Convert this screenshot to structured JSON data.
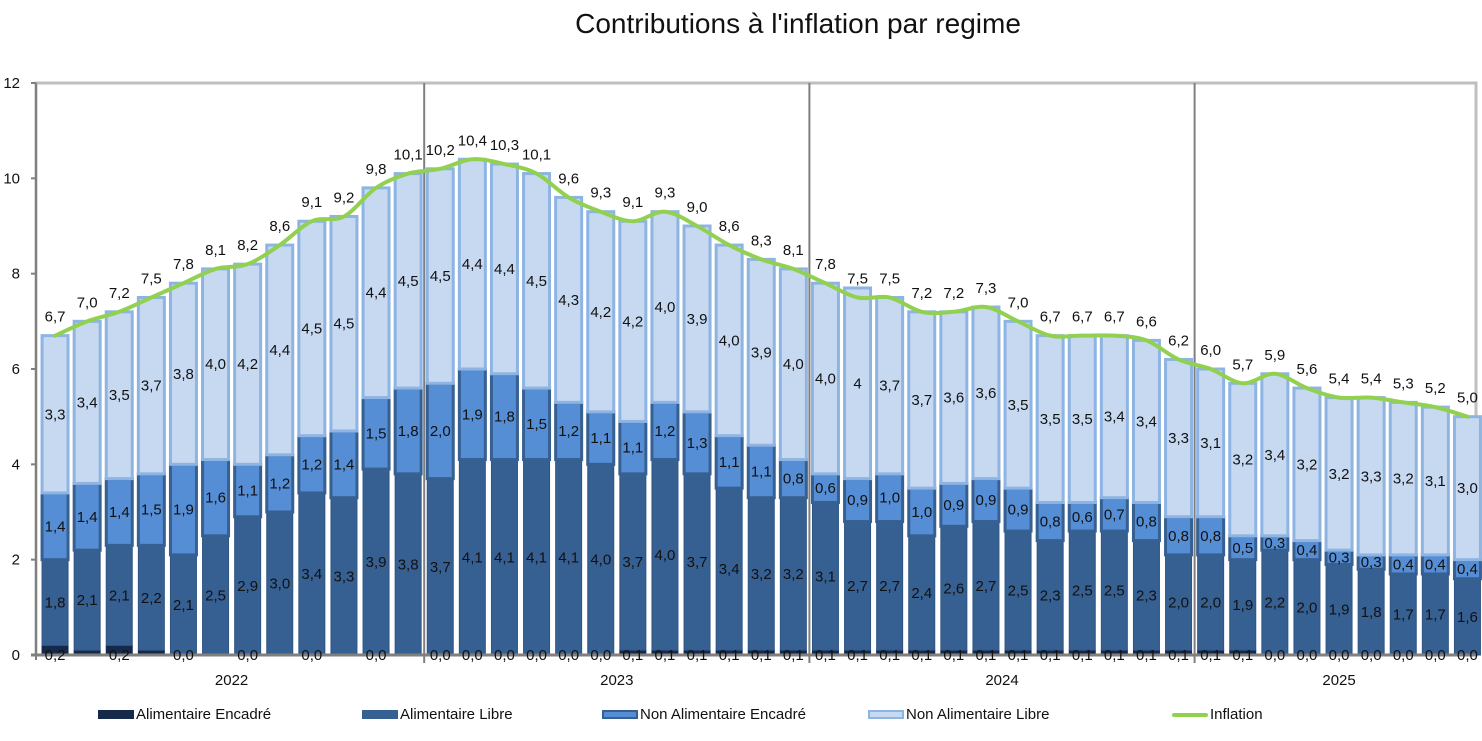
{
  "chart_data": {
    "type": "bar",
    "stacked": true,
    "title": "Contributions à l'inflation par regime",
    "xlabel": "",
    "ylabel": "",
    "ylim": [
      0,
      12
    ],
    "yticks": [
      0,
      2,
      4,
      6,
      8,
      10,
      12
    ],
    "grid": false,
    "legend_position": "bottom",
    "years": [
      {
        "label": "2022",
        "count": 12
      },
      {
        "label": "2023",
        "count": 12
      },
      {
        "label": "2024",
        "count": 12
      },
      {
        "label": "2025",
        "count": 9
      }
    ],
    "series": [
      {
        "name": "Alimentaire Encadré",
        "color": "#16294a",
        "values": [
          0.2,
          0.1,
          0.2,
          0.1,
          0.0,
          0.0,
          0.0,
          0.0,
          0.0,
          0.0,
          0.0,
          0.0,
          0.0,
          0.0,
          0.0,
          0.0,
          0.0,
          0.0,
          0.1,
          0.1,
          0.1,
          0.1,
          0.1,
          0.1,
          0.1,
          0.1,
          0.1,
          0.1,
          0.1,
          0.1,
          0.1,
          0.1,
          0.1,
          0.1,
          0.1,
          0.1,
          0.1,
          0.1,
          0.0,
          0.0,
          0.0,
          0.0,
          0.0,
          0.0,
          0.0
        ],
        "labels": [
          "0,2",
          "",
          "0,2",
          "",
          "0,0",
          "",
          "0,0",
          "",
          "0,0",
          "",
          "0,0",
          "",
          "0,0",
          "0,0",
          "0,0",
          "0,0",
          "0,0",
          "0,0",
          "0,1",
          "0,1",
          "0,1",
          "0,1",
          "0,1",
          "0,1",
          "0,1",
          "0,1",
          "0,1",
          "0,1",
          "0,1",
          "0,1",
          "0,1",
          "0,1",
          "0,1",
          "0,1",
          "0,1",
          "0,1",
          "0,1",
          "0,1",
          "0,0",
          "0,0",
          "0,0",
          "0,0",
          "0,0",
          "0,0",
          "0,0"
        ]
      },
      {
        "name": "Alimentaire Libre",
        "color": "#376092",
        "values": [
          1.8,
          2.1,
          2.1,
          2.2,
          2.1,
          2.5,
          2.9,
          3.0,
          3.4,
          3.3,
          3.9,
          3.8,
          3.7,
          4.1,
          4.1,
          4.1,
          4.1,
          4.0,
          3.7,
          4.0,
          3.7,
          3.4,
          3.2,
          3.2,
          3.1,
          2.7,
          2.7,
          2.4,
          2.6,
          2.7,
          2.5,
          2.3,
          2.5,
          2.5,
          2.3,
          2.0,
          2.0,
          1.9,
          2.2,
          2.0,
          1.9,
          1.8,
          1.7,
          1.7,
          1.6
        ],
        "labels": [
          "1,8",
          "2,1",
          "2,1",
          "2,2",
          "2,1",
          "2,5",
          "2,9",
          "3,0",
          "3,4",
          "3,3",
          "3,9",
          "3,8",
          "3,7",
          "4,1",
          "4,1",
          "4,1",
          "4,1",
          "4,0",
          "3,7",
          "4,0",
          "3,7",
          "3,4",
          "3,2",
          "3,2",
          "3,1",
          "2,7",
          "2,7",
          "2,4",
          "2,6",
          "2,7",
          "2,5",
          "2,3",
          "2,5",
          "2,5",
          "2,3",
          "2,0",
          "2,0",
          "1,9",
          "2,2",
          "2,0",
          "1,9",
          "1,8",
          "1,7",
          "1,7",
          "1,6"
        ]
      },
      {
        "name": "Non Alimentaire Encadré",
        "color": "#558ed5",
        "values": [
          1.4,
          1.4,
          1.4,
          1.5,
          1.9,
          1.6,
          1.1,
          1.2,
          1.2,
          1.4,
          1.5,
          1.8,
          2.0,
          1.9,
          1.8,
          1.5,
          1.2,
          1.1,
          1.1,
          1.2,
          1.3,
          1.1,
          1.1,
          0.8,
          0.6,
          0.9,
          1.0,
          1.0,
          0.9,
          0.9,
          0.9,
          0.8,
          0.6,
          0.7,
          0.8,
          0.8,
          0.8,
          0.5,
          0.3,
          0.4,
          0.3,
          0.3,
          0.4,
          0.4,
          0.4
        ],
        "labels": [
          "1,4",
          "1,4",
          "1,4",
          "1,5",
          "1,9",
          "1,6",
          "1,1",
          "1,2",
          "1,2",
          "1,4",
          "1,5",
          "1,8",
          "2,0",
          "1,9",
          "1,8",
          "1,5",
          "1,2",
          "1,1",
          "1,1",
          "1,2",
          "1,3",
          "1,1",
          "1,1",
          "0,8",
          "0,6",
          "0,9",
          "1,0",
          "1,0",
          "0,9",
          "0,9",
          "0,9",
          "0,8",
          "0,6",
          "0,7",
          "0,8",
          "0,8",
          "0,8",
          "0,5",
          "0,3",
          "0,4",
          "0,3",
          "0,3",
          "0,4",
          "0,4",
          "0,4"
        ]
      },
      {
        "name": "Non Alimentaire Libre",
        "color": "#c6d9f1",
        "values": [
          3.3,
          3.4,
          3.5,
          3.7,
          3.8,
          4.0,
          4.2,
          4.4,
          4.5,
          4.5,
          4.4,
          4.5,
          4.5,
          4.4,
          4.4,
          4.5,
          4.3,
          4.2,
          4.2,
          4.0,
          3.9,
          4.0,
          3.9,
          4.0,
          4.0,
          4.0,
          3.7,
          3.7,
          3.6,
          3.6,
          3.5,
          3.5,
          3.5,
          3.4,
          3.4,
          3.3,
          3.1,
          3.2,
          3.4,
          3.2,
          3.2,
          3.3,
          3.2,
          3.1,
          3.0
        ],
        "labels": [
          "3,3",
          "3,4",
          "3,5",
          "3,7",
          "3,8",
          "4,0",
          "4,2",
          "4,4",
          "4,5",
          "4,5",
          "4,4",
          "4,5",
          "4,5",
          "4,4",
          "4,4",
          "4,5",
          "4,3",
          "4,2",
          "4,2",
          "4,0",
          "3,9",
          "4,0",
          "3,9",
          "4,0",
          "4,0",
          "4",
          "3,7",
          "3,7",
          "3,6",
          "3,6",
          "3,5",
          "3,5",
          "3,5",
          "3,4",
          "3,4",
          "3,3",
          "3,1",
          "3,2",
          "3,4",
          "3,2",
          "3,2",
          "3,3",
          "3,2",
          "3,1",
          "3,0"
        ]
      },
      {
        "name": "Inflation",
        "type": "line",
        "color": "#92d050",
        "values": [
          6.7,
          7.0,
          7.2,
          7.5,
          7.8,
          8.1,
          8.2,
          8.6,
          9.1,
          9.2,
          9.8,
          10.1,
          10.2,
          10.4,
          10.3,
          10.1,
          9.6,
          9.3,
          9.1,
          9.3,
          9.0,
          8.6,
          8.3,
          8.1,
          7.8,
          7.5,
          7.5,
          7.2,
          7.2,
          7.3,
          7.0,
          6.7,
          6.7,
          6.7,
          6.6,
          6.2,
          6.0,
          5.7,
          5.9,
          5.6,
          5.4,
          5.4,
          5.3,
          5.2,
          5.0
        ],
        "labels": [
          "6,7",
          "7,0",
          "7,2",
          "7,5",
          "7,8",
          "8,1",
          "8,2",
          "8,6",
          "9,1",
          "9,2",
          "9,8",
          "10,1",
          "10,2",
          "10,4",
          "10,3",
          "10,1",
          "9,6",
          "9,3",
          "9,1",
          "9,3",
          "9,0",
          "8,6",
          "8,3",
          "8,1",
          "7,8",
          "7,5",
          "7,5",
          "7,2",
          "7,2",
          "7,3",
          "7,0",
          "6,7",
          "6,7",
          "6,7",
          "6,6",
          "6,2",
          "6,0",
          "5,7",
          "5,9",
          "5,6",
          "5,4",
          "5,4",
          "5,3",
          "5,2",
          "5,0"
        ]
      }
    ]
  },
  "legend": {
    "items": [
      {
        "label": "Alimentaire Encadré"
      },
      {
        "label": "Alimentaire Libre"
      },
      {
        "label": "Non Alimentaire Encadré"
      },
      {
        "label": "Non Alimentaire Libre"
      },
      {
        "label": "Inflation"
      }
    ]
  }
}
